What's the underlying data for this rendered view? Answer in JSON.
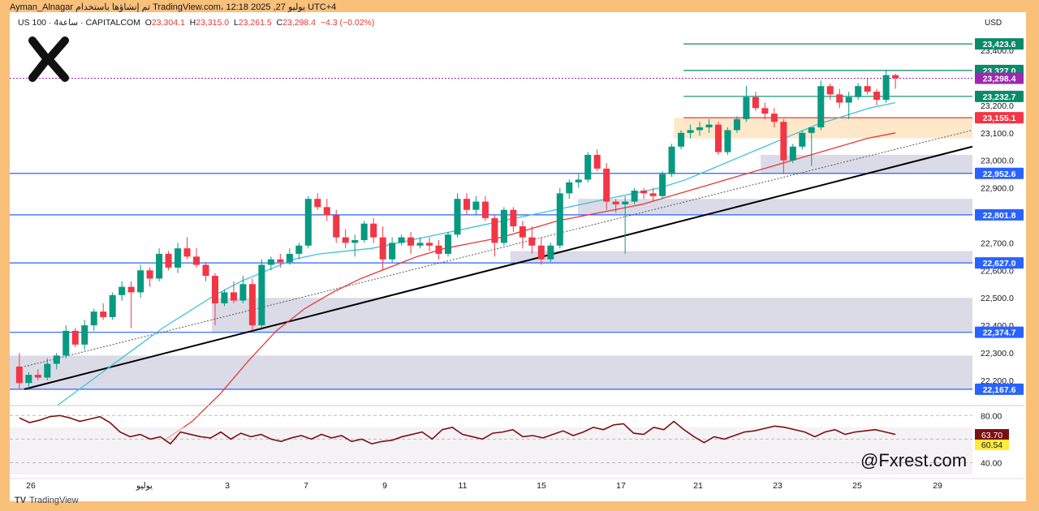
{
  "header": {
    "author_line": "Ayman_Alnagar تم إنشاؤها باستخدام TradingView.com، 12:18 2025 ,27 يوليو UTC+4",
    "symbol": "US 100 · 4ساعة · CAPITALCOM",
    "open_label": "O",
    "open": "23,304.1",
    "high_label": "H",
    "high": "23,315.0",
    "low_label": "L",
    "low": "23,261.5",
    "close_label": "C",
    "close": "23,298.4",
    "change": "−4.3 (−0.02%)"
  },
  "watermark": "@Fxrest.com",
  "tv_logo": "TradingView",
  "logo_icon": "fx-logo-icon",
  "colors": {
    "background_frame": "#f9c07a",
    "up": "#089981",
    "down": "#f23645",
    "ema_fast": "#3ec3d6",
    "ema_slow": "#e53935",
    "support_line": "#2962ff",
    "resistance_line": "#0a8a6a",
    "zone_gray": "#cfcfe0",
    "zone_orange": "#fde2bd",
    "rsi": "#7b1010"
  },
  "chart_data": {
    "type": "line",
    "title": "US 100 · 4ساعة · CAPITALCOM",
    "currency": "USD",
    "ylim": [
      22120,
      23480
    ],
    "y_ticks": [
      "23,400.0",
      "23,300.0",
      "23,200.0",
      "23,100.0",
      "23,000.0",
      "22,900.0",
      "22,800.0",
      "22,700.0",
      "22,600.0",
      "22,500.0",
      "22,400.0",
      "22,300.0",
      "22,200.0"
    ],
    "x_ticks": [
      "26",
      "يوليو",
      "3",
      "7",
      "9",
      "11",
      "15",
      "17",
      "21",
      "23",
      "25",
      "29"
    ],
    "price_labels": [
      {
        "value": 23423.6,
        "text": "23,423.6",
        "color": "#0a8a6a"
      },
      {
        "value": 23327.0,
        "text": "23,327.0",
        "color": "#0a8a6a"
      },
      {
        "value": 23298.4,
        "text": "23,298.4",
        "color": "#9c27b0"
      },
      {
        "value": 23232.7,
        "text": "23,232.7",
        "color": "#0a8a6a"
      },
      {
        "value": 23155.1,
        "text": "23,155.1",
        "color": "#f23645"
      },
      {
        "value": 22952.6,
        "text": "22,952.6",
        "color": "#2962ff"
      },
      {
        "value": 22801.8,
        "text": "22,801.8",
        "color": "#2962ff"
      },
      {
        "value": 22627.0,
        "text": "22,627.0",
        "color": "#2962ff"
      },
      {
        "value": 22374.7,
        "text": "22,374.7",
        "color": "#2962ff"
      },
      {
        "value": 22167.6,
        "text": "22,167.6",
        "color": "#2962ff"
      }
    ],
    "zones": [
      {
        "x0": 0,
        "x1": 1,
        "y0": 22167.6,
        "y1": 22290,
        "color": "gray"
      },
      {
        "x0": 0.21,
        "x1": 1,
        "y0": 22374.7,
        "y1": 22500,
        "color": "gray"
      },
      {
        "x0": 0.52,
        "x1": 1,
        "y0": 22627.0,
        "y1": 22670,
        "color": "gray"
      },
      {
        "x0": 0.59,
        "x1": 1,
        "y0": 22801.8,
        "y1": 22860,
        "color": "gray"
      },
      {
        "x0": 0.78,
        "x1": 1,
        "y0": 22952.6,
        "y1": 23020,
        "color": "gray"
      },
      {
        "x0": 0.69,
        "x1": 1,
        "y0": 23080,
        "y1": 23155.1,
        "color": "orange"
      }
    ],
    "candles": [
      [
        22250,
        22300,
        22170,
        22190
      ],
      [
        22190,
        22230,
        22170,
        22220
      ],
      [
        22220,
        22240,
        22200,
        22210
      ],
      [
        22210,
        22280,
        22200,
        22260
      ],
      [
        22260,
        22300,
        22240,
        22290
      ],
      [
        22290,
        22400,
        22280,
        22380
      ],
      [
        22380,
        22390,
        22320,
        22330
      ],
      [
        22330,
        22420,
        22310,
        22400
      ],
      [
        22400,
        22460,
        22380,
        22450
      ],
      [
        22450,
        22480,
        22420,
        22430
      ],
      [
        22430,
        22520,
        22420,
        22510
      ],
      [
        22510,
        22560,
        22490,
        22540
      ],
      [
        22540,
        22560,
        22390,
        22520
      ],
      [
        22520,
        22620,
        22500,
        22600
      ],
      [
        22600,
        22610,
        22540,
        22570
      ],
      [
        22570,
        22680,
        22560,
        22660
      ],
      [
        22660,
        22670,
        22600,
        22610
      ],
      [
        22610,
        22700,
        22590,
        22680
      ],
      [
        22680,
        22720,
        22640,
        22650
      ],
      [
        22650,
        22680,
        22610,
        22620
      ],
      [
        22620,
        22630,
        22560,
        22580
      ],
      [
        22580,
        22590,
        22400,
        22480
      ],
      [
        22480,
        22530,
        22470,
        22520
      ],
      [
        22520,
        22560,
        22480,
        22490
      ],
      [
        22490,
        22580,
        22480,
        22550
      ],
      [
        22550,
        22570,
        22380,
        22400
      ],
      [
        22400,
        22640,
        22390,
        22620
      ],
      [
        22620,
        22650,
        22600,
        22640
      ],
      [
        22640,
        22660,
        22610,
        22630
      ],
      [
        22630,
        22680,
        22620,
        22660
      ],
      [
        22660,
        22700,
        22640,
        22690
      ],
      [
        22690,
        22870,
        22680,
        22860
      ],
      [
        22860,
        22880,
        22820,
        22830
      ],
      [
        22830,
        22860,
        22780,
        22800
      ],
      [
        22800,
        22820,
        22700,
        22720
      ],
      [
        22720,
        22750,
        22680,
        22700
      ],
      [
        22700,
        22730,
        22650,
        22710
      ],
      [
        22710,
        22780,
        22700,
        22770
      ],
      [
        22770,
        22790,
        22700,
        22720
      ],
      [
        22720,
        22760,
        22600,
        22640
      ],
      [
        22640,
        22720,
        22630,
        22700
      ],
      [
        22700,
        22730,
        22690,
        22720
      ],
      [
        22720,
        22740,
        22660,
        22690
      ],
      [
        22690,
        22720,
        22680,
        22700
      ],
      [
        22700,
        22720,
        22670,
        22690
      ],
      [
        22690,
        22710,
        22640,
        22660
      ],
      [
        22660,
        22740,
        22650,
        22730
      ],
      [
        22730,
        22880,
        22720,
        22860
      ],
      [
        22860,
        22880,
        22800,
        22820
      ],
      [
        22820,
        22870,
        22800,
        22850
      ],
      [
        22850,
        22870,
        22780,
        22790
      ],
      [
        22790,
        22800,
        22650,
        22700
      ],
      [
        22700,
        22830,
        22690,
        22820
      ],
      [
        22820,
        22830,
        22740,
        22760
      ],
      [
        22760,
        22780,
        22680,
        22720
      ],
      [
        22720,
        22760,
        22660,
        22690
      ],
      [
        22690,
        22720,
        22620,
        22640
      ],
      [
        22640,
        22700,
        22630,
        22690
      ],
      [
        22690,
        22900,
        22680,
        22880
      ],
      [
        22880,
        22930,
        22860,
        22920
      ],
      [
        22920,
        22950,
        22900,
        22930
      ],
      [
        22930,
        23030,
        22920,
        23020
      ],
      [
        23020,
        23040,
        22960,
        22970
      ],
      [
        22970,
        22990,
        22820,
        22850
      ],
      [
        22850,
        22860,
        22810,
        22840
      ],
      [
        22840,
        22870,
        22660,
        22850
      ],
      [
        22850,
        22900,
        22840,
        22890
      ],
      [
        22890,
        22900,
        22860,
        22880
      ],
      [
        22880,
        22900,
        22850,
        22870
      ],
      [
        22870,
        22960,
        22860,
        22950
      ],
      [
        22950,
        23060,
        22940,
        23050
      ],
      [
        23050,
        23110,
        23040,
        23100
      ],
      [
        23100,
        23130,
        23080,
        23110
      ],
      [
        23110,
        23140,
        23090,
        23120
      ],
      [
        23120,
        23150,
        23100,
        23130
      ],
      [
        23130,
        23140,
        23020,
        23030
      ],
      [
        23030,
        23120,
        23020,
        23110
      ],
      [
        23110,
        23160,
        23100,
        23150
      ],
      [
        23150,
        23270,
        23140,
        23230
      ],
      [
        23230,
        23250,
        23180,
        23190
      ],
      [
        23190,
        23210,
        23150,
        23170
      ],
      [
        23170,
        23190,
        23120,
        23140
      ],
      [
        23140,
        23150,
        22950,
        23000
      ],
      [
        23000,
        23060,
        22990,
        23050
      ],
      [
        23050,
        23110,
        23040,
        23100
      ],
      [
        23100,
        23120,
        22980,
        23120
      ],
      [
        23120,
        23290,
        23110,
        23270
      ],
      [
        23270,
        23280,
        23220,
        23240
      ],
      [
        23240,
        23260,
        23190,
        23210
      ],
      [
        23210,
        23250,
        23150,
        23230
      ],
      [
        23230,
        23280,
        23220,
        23270
      ],
      [
        23270,
        23300,
        23240,
        23250
      ],
      [
        23250,
        23260,
        23200,
        23220
      ],
      [
        23220,
        23330,
        23210,
        23310
      ],
      [
        23310,
        23315,
        23260,
        23298
      ]
    ],
    "ema_fast": [
      22110,
      22180,
      22250,
      22320,
      22390,
      22450,
      22510,
      22560,
      22600,
      22640,
      22660,
      22670,
      22680,
      22700,
      22720,
      22740,
      22760,
      22780,
      22800,
      22820,
      22840,
      22860,
      22880,
      22900,
      22930,
      22970,
      23010,
      23050,
      23090,
      23130,
      23160,
      23190,
      23210
    ],
    "ema_slow": [
      21980,
      22050,
      22150,
      22270,
      22380,
      22460,
      22520,
      22570,
      22610,
      22650,
      22680,
      22700,
      22720,
      22750,
      22780,
      22800,
      22820,
      22840,
      22870,
      22900,
      22930,
      22960,
      22990,
      23020,
      23050,
      23080,
      23100
    ],
    "trendline": {
      "from": [
        0,
        22167.6
      ],
      "to": [
        1,
        23050
      ]
    },
    "dotted_trend": {
      "from": [
        0,
        22250
      ],
      "to": [
        1,
        23110
      ]
    },
    "rsi": {
      "label_top": "80.00",
      "label_bottom": "40.00",
      "value1": "63.70",
      "value2": "60.54",
      "values": [
        78,
        74,
        76,
        79,
        80,
        78,
        75,
        77,
        79,
        74,
        66,
        62,
        64,
        60,
        62,
        56,
        66,
        64,
        62,
        61,
        66,
        60,
        65,
        62,
        64,
        60,
        58,
        61,
        63,
        60,
        64,
        61,
        63,
        58,
        60,
        56,
        58,
        59,
        62,
        64,
        66,
        60,
        68,
        70,
        64,
        62,
        60,
        65,
        66,
        68,
        62,
        63,
        61,
        64,
        67,
        63,
        66,
        70,
        68,
        72,
        73,
        65,
        64,
        70,
        68,
        75,
        68,
        62,
        57,
        62,
        60,
        63,
        66,
        67,
        69,
        71,
        70,
        68,
        66,
        62,
        66,
        68,
        64,
        66,
        67,
        68,
        66,
        64
      ]
    }
  }
}
